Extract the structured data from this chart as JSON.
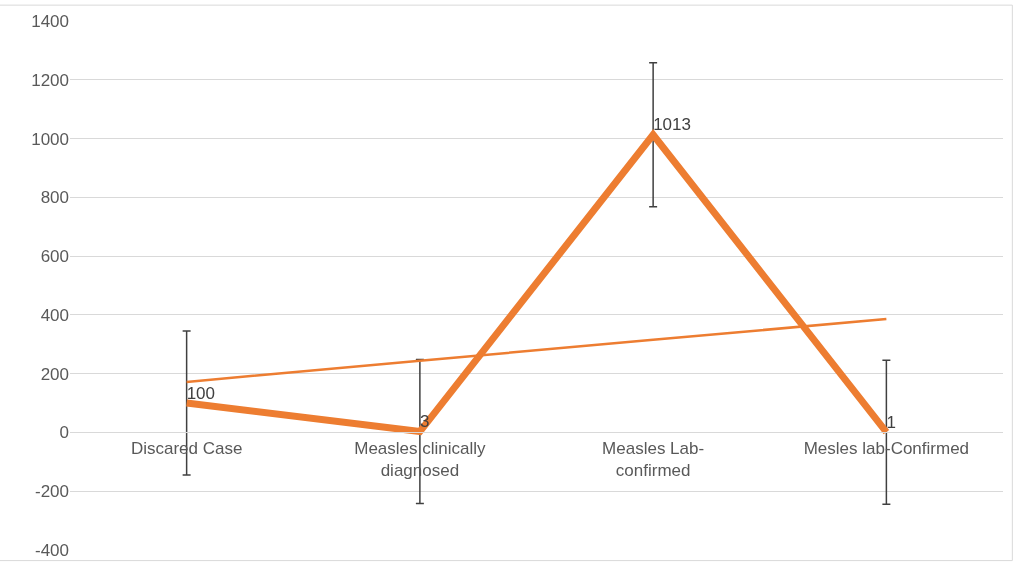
{
  "chart_data": {
    "type": "line",
    "categories": [
      "Discared Case",
      "Measles clinically diagnosed",
      "Measles Lab-confirmed",
      "Mesles lab-Confirmed"
    ],
    "series": [
      {
        "color": "#ed7d31",
        "values": [
          100,
          3,
          1013,
          1
        ],
        "errors": [
          245,
          245,
          245,
          245
        ],
        "value_labels": [
          "100",
          "3",
          "1013",
          "1"
        ]
      },
      {
        "color": "#ed7d31",
        "values": [
          172,
          244,
          315,
          386
        ]
      }
    ],
    "ylim": [
      -400,
      1400
    ],
    "yticks": [
      -400,
      -200,
      0,
      200,
      400,
      600,
      800,
      1000,
      1200,
      1400
    ],
    "grid": "y",
    "marker": "none",
    "line_style": "solid"
  }
}
